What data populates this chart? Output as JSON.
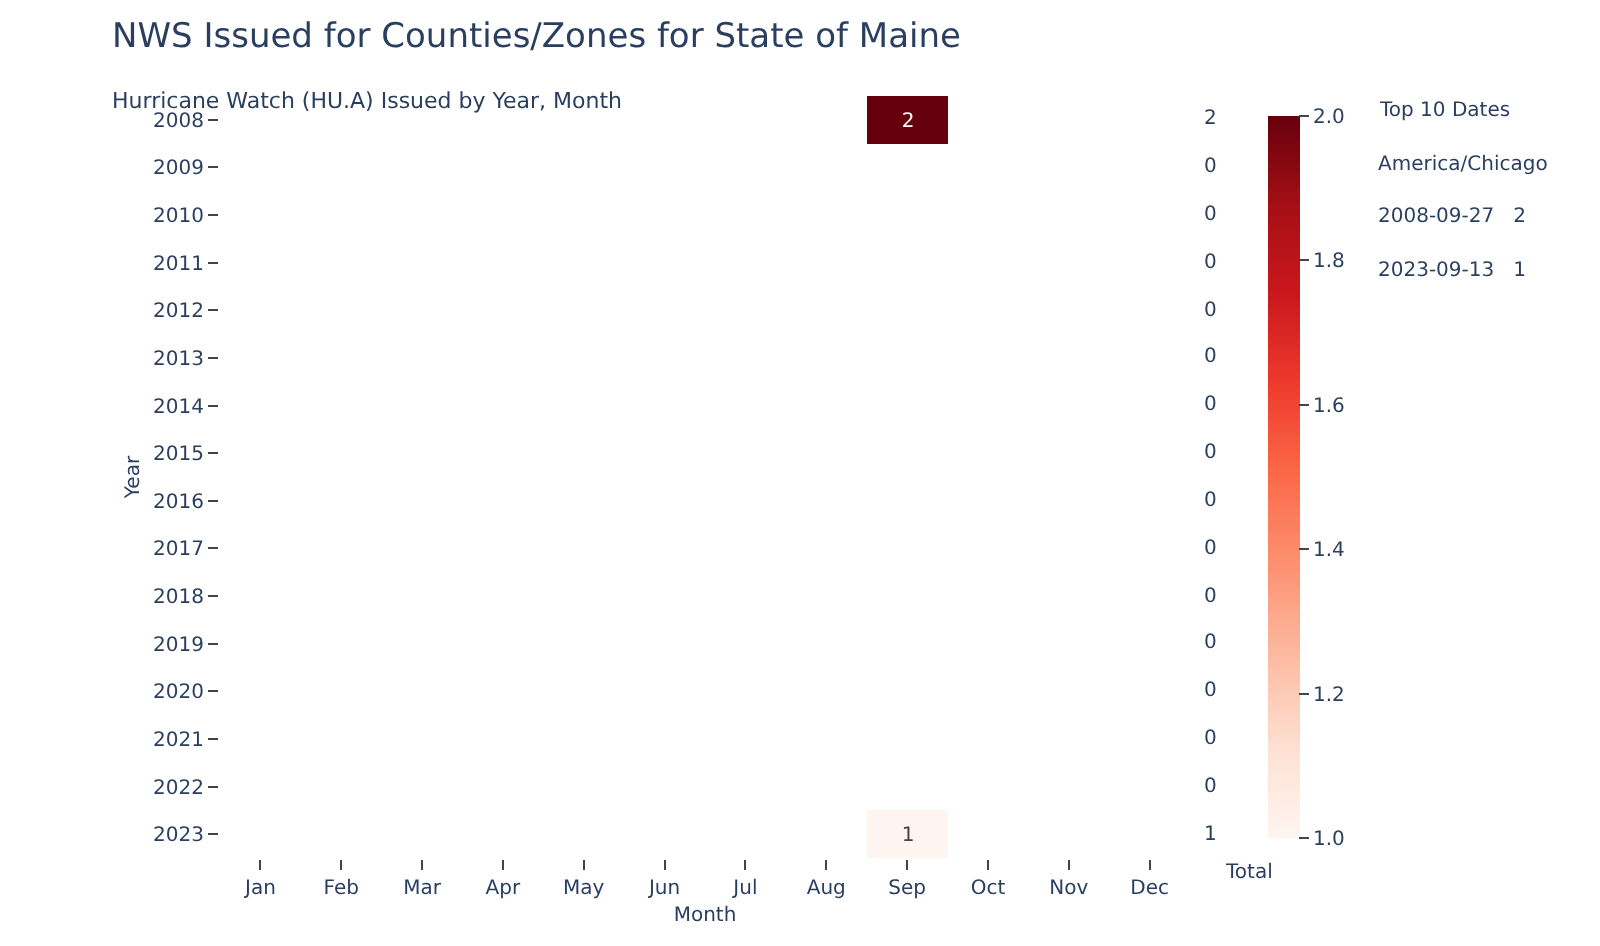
{
  "chart_data": {
    "type": "heatmap",
    "title": "NWS Issued for Counties/Zones for State of Maine",
    "subtitle": "Hurricane Watch (HU.A) Issued by Year, Month",
    "xlabel": "Month",
    "ylabel": "Year",
    "categories": [
      "Jan",
      "Feb",
      "Mar",
      "Apr",
      "May",
      "Jun",
      "Jul",
      "Aug",
      "Sep",
      "Oct",
      "Nov",
      "Dec"
    ],
    "y_categories": [
      "2008",
      "2009",
      "2010",
      "2011",
      "2012",
      "2013",
      "2014",
      "2015",
      "2016",
      "2017",
      "2018",
      "2019",
      "2020",
      "2021",
      "2022",
      "2023"
    ],
    "y2_categories": [
      "2",
      "0",
      "0",
      "0",
      "0",
      "0",
      "0",
      "0",
      "0",
      "0",
      "0",
      "0",
      "0",
      "0",
      "0",
      "1"
    ],
    "cells": [
      [
        null,
        null,
        null,
        null,
        null,
        null,
        null,
        null,
        2,
        null,
        null,
        null
      ],
      [
        null,
        null,
        null,
        null,
        null,
        null,
        null,
        null,
        null,
        null,
        null,
        null
      ],
      [
        null,
        null,
        null,
        null,
        null,
        null,
        null,
        null,
        null,
        null,
        null,
        null
      ],
      [
        null,
        null,
        null,
        null,
        null,
        null,
        null,
        null,
        null,
        null,
        null,
        null
      ],
      [
        null,
        null,
        null,
        null,
        null,
        null,
        null,
        null,
        null,
        null,
        null,
        null
      ],
      [
        null,
        null,
        null,
        null,
        null,
        null,
        null,
        null,
        null,
        null,
        null,
        null
      ],
      [
        null,
        null,
        null,
        null,
        null,
        null,
        null,
        null,
        null,
        null,
        null,
        null
      ],
      [
        null,
        null,
        null,
        null,
        null,
        null,
        null,
        null,
        null,
        null,
        null,
        null
      ],
      [
        null,
        null,
        null,
        null,
        null,
        null,
        null,
        null,
        null,
        null,
        null,
        null
      ],
      [
        null,
        null,
        null,
        null,
        null,
        null,
        null,
        null,
        null,
        null,
        null,
        null
      ],
      [
        null,
        null,
        null,
        null,
        null,
        null,
        null,
        null,
        null,
        null,
        null,
        null
      ],
      [
        null,
        null,
        null,
        null,
        null,
        null,
        null,
        null,
        null,
        null,
        null,
        null
      ],
      [
        null,
        null,
        null,
        null,
        null,
        null,
        null,
        null,
        null,
        null,
        null,
        null
      ],
      [
        null,
        null,
        null,
        null,
        null,
        null,
        null,
        null,
        null,
        null,
        null,
        null
      ],
      [
        null,
        null,
        null,
        null,
        null,
        null,
        null,
        null,
        null,
        null,
        null,
        null
      ],
      [
        null,
        null,
        null,
        null,
        null,
        null,
        null,
        null,
        1,
        null,
        null,
        null
      ]
    ],
    "data_labels": true,
    "clim": [
      1.0,
      2.0
    ],
    "cticks": [
      {
        "value": 1.0,
        "label": "1.0"
      },
      {
        "value": 1.2,
        "label": "1.2"
      },
      {
        "value": 1.4,
        "label": "1.4"
      },
      {
        "value": 1.6,
        "label": "1.6"
      },
      {
        "value": 1.8,
        "label": "1.8"
      },
      {
        "value": 2.0,
        "label": "2.0"
      }
    ],
    "annotations": [
      "Total",
      "Top 10 Dates",
      "America/Chicago",
      "2008-09-27   2",
      "2023-09-13   1"
    ]
  }
}
